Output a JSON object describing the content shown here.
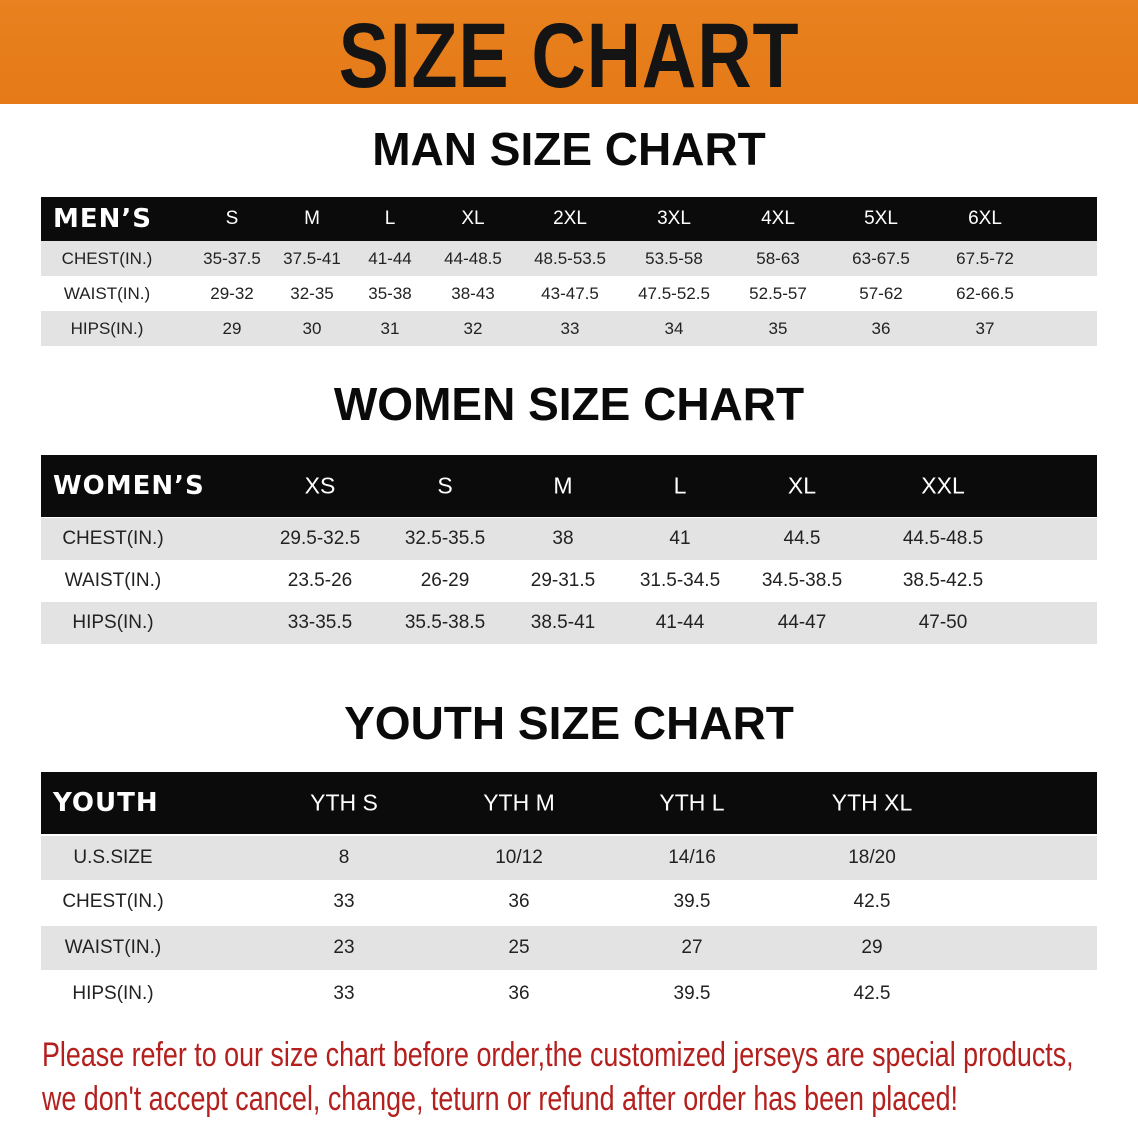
{
  "banner_title": "SIZE CHART",
  "colors": {
    "banner": "#e57a17",
    "header_bg": "#0b0b0b",
    "stripe": "#e3e3e3",
    "note": "#b3201e"
  },
  "men": {
    "title": "MAN SIZE CHART",
    "header_label": "MEN’S",
    "sizes": [
      "S",
      "M",
      "L",
      "XL",
      "2XL",
      "3XL",
      "4XL",
      "5XL",
      "6XL"
    ],
    "rows": [
      {
        "label": "CHEST(IN.)",
        "values": [
          "35-37.5",
          "37.5-41",
          "41-44",
          "44-48.5",
          "48.5-53.5",
          "53.5-58",
          "58-63",
          "63-67.5",
          "67.5-72"
        ]
      },
      {
        "label": "WAIST(IN.)",
        "values": [
          "29-32",
          "32-35",
          "35-38",
          "38-43",
          "43-47.5",
          "47.5-52.5",
          "52.5-57",
          "57-62",
          "62-66.5"
        ]
      },
      {
        "label": "HIPS(IN.)",
        "values": [
          "29",
          "30",
          "31",
          "32",
          "33",
          "34",
          "35",
          "36",
          "37"
        ]
      }
    ]
  },
  "women": {
    "title": "WOMEN SIZE CHART",
    "header_label": "WOMEN’S",
    "sizes": [
      "XS",
      "S",
      "M",
      "L",
      "XL",
      "XXL"
    ],
    "rows": [
      {
        "label": "CHEST(IN.)",
        "values": [
          "29.5-32.5",
          "32.5-35.5",
          "38",
          "41",
          "44.5",
          "44.5-48.5"
        ]
      },
      {
        "label": "WAIST(IN.)",
        "values": [
          "23.5-26",
          "26-29",
          "29-31.5",
          "31.5-34.5",
          "34.5-38.5",
          "38.5-42.5"
        ]
      },
      {
        "label": "HIPS(IN.)",
        "values": [
          "33-35.5",
          "35.5-38.5",
          "38.5-41",
          "41-44",
          "44-47",
          "47-50"
        ]
      }
    ]
  },
  "youth": {
    "title": "YOUTH SIZE CHART",
    "header_label": "YOUTH",
    "sizes": [
      "YTH S",
      "YTH M",
      "YTH L",
      "YTH XL"
    ],
    "rows": [
      {
        "label": "U.S.SIZE",
        "values": [
          "8",
          "10/12",
          "14/16",
          "18/20"
        ]
      },
      {
        "label": "CHEST(IN.)",
        "values": [
          "33",
          "36",
          "39.5",
          "42.5"
        ]
      },
      {
        "label": "WAIST(IN.)",
        "values": [
          "23",
          "25",
          "27",
          "29"
        ]
      },
      {
        "label": "HIPS(IN.)",
        "values": [
          "33",
          "36",
          "39.5",
          "42.5"
        ]
      }
    ]
  },
  "note": {
    "line1": "Please refer to our size chart before order,the customized jerseys are special products,",
    "line2": "we don't accept cancel, change, teturn or refund after order has been placed!"
  }
}
